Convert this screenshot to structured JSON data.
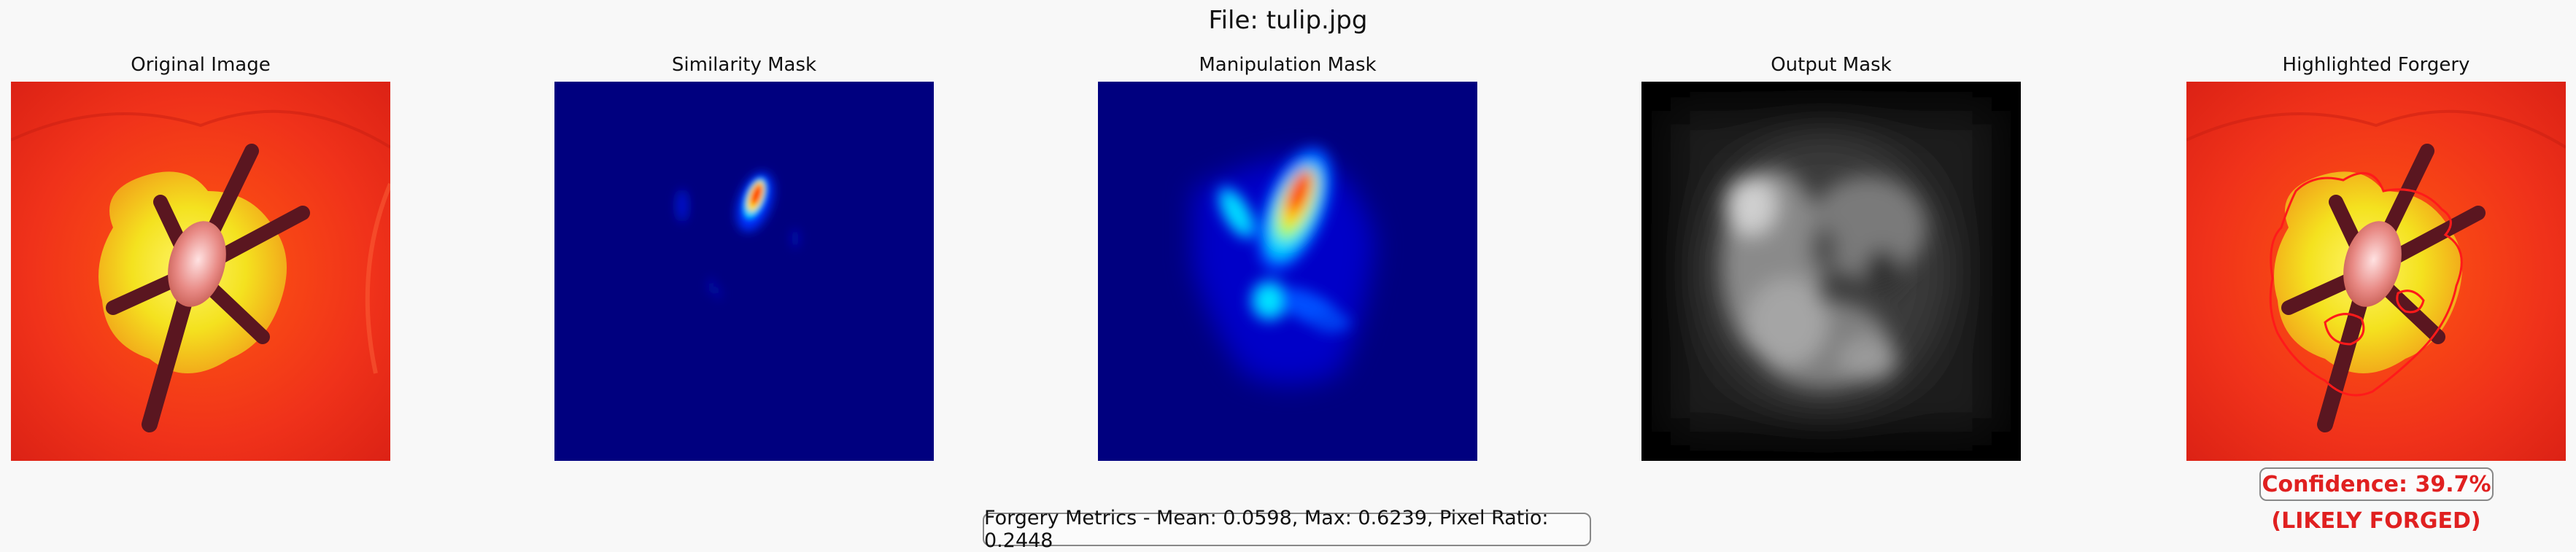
{
  "figure": {
    "title": "File: tulip.jpg"
  },
  "panels": [
    {
      "title": "Original Image"
    },
    {
      "title": "Similarity Mask"
    },
    {
      "title": "Manipulation Mask"
    },
    {
      "title": "Output Mask"
    },
    {
      "title": "Highlighted Forgery"
    }
  ],
  "metrics": {
    "text": "Forgery Metrics - Mean: 0.0598, Max: 0.6239, Pixel Ratio: 0.2448"
  },
  "verdict": {
    "confidence_text": "Confidence: 39.7%",
    "label": "(LIKELY FORGED)",
    "color": "#e02020"
  },
  "colors": {
    "background": "#f8f8f8",
    "colormap_low": "#00007f",
    "contour": "#ff1a1a"
  }
}
